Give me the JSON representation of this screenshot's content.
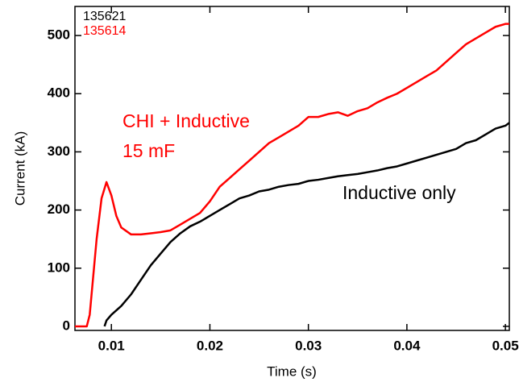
{
  "chart_data": {
    "type": "line",
    "x_label": "Time (s)",
    "y_label": "Current (kA)",
    "xlim": [
      0.0063,
      0.0504
    ],
    "ylim": [
      -7,
      550
    ],
    "xticks": [
      0.01,
      0.02,
      0.03,
      0.04,
      0.05
    ],
    "yticks": [
      0,
      100,
      200,
      300,
      400,
      500
    ],
    "series": [
      {
        "name": "135621",
        "color": "#000000",
        "x": [
          0.0093,
          0.0095,
          0.01,
          0.011,
          0.012,
          0.013,
          0.014,
          0.015,
          0.016,
          0.017,
          0.018,
          0.019,
          0.02,
          0.021,
          0.022,
          0.023,
          0.024,
          0.025,
          0.026,
          0.027,
          0.028,
          0.029,
          0.03,
          0.031,
          0.032,
          0.033,
          0.034,
          0.035,
          0.036,
          0.037,
          0.038,
          0.039,
          0.04,
          0.041,
          0.042,
          0.043,
          0.044,
          0.045,
          0.046,
          0.047,
          0.048,
          0.049,
          0.05,
          0.0504
        ],
        "values": [
          0,
          10,
          20,
          35,
          55,
          80,
          105,
          125,
          145,
          160,
          172,
          180,
          190,
          200,
          210,
          220,
          225,
          232,
          235,
          240,
          243,
          245,
          250,
          252,
          255,
          258,
          260,
          262,
          265,
          268,
          272,
          275,
          280,
          285,
          290,
          295,
          300,
          305,
          315,
          320,
          330,
          340,
          345,
          350
        ]
      },
      {
        "name": "135614",
        "color": "#ff0000",
        "x": [
          0.0063,
          0.0075,
          0.0078,
          0.0085,
          0.009,
          0.0095,
          0.01,
          0.0105,
          0.011,
          0.012,
          0.013,
          0.014,
          0.015,
          0.016,
          0.017,
          0.018,
          0.019,
          0.02,
          0.021,
          0.022,
          0.023,
          0.024,
          0.025,
          0.026,
          0.027,
          0.028,
          0.029,
          0.03,
          0.031,
          0.032,
          0.033,
          0.034,
          0.035,
          0.036,
          0.037,
          0.038,
          0.039,
          0.04,
          0.041,
          0.042,
          0.043,
          0.044,
          0.045,
          0.046,
          0.047,
          0.048,
          0.049,
          0.05,
          0.0504
        ],
        "values": [
          0,
          0,
          20,
          150,
          220,
          248,
          225,
          190,
          170,
          158,
          158,
          160,
          162,
          165,
          175,
          185,
          195,
          215,
          240,
          255,
          270,
          285,
          300,
          315,
          325,
          335,
          345,
          360,
          360,
          365,
          368,
          362,
          370,
          375,
          385,
          393,
          400,
          410,
          420,
          430,
          440,
          455,
          470,
          485,
          495,
          505,
          515,
          520,
          520
        ]
      }
    ],
    "annotations": [
      {
        "text": "CHI + Inductive",
        "color": "#ff0000"
      },
      {
        "text": "15 mF",
        "color": "#ff0000"
      },
      {
        "text": "Inductive only",
        "color": "#000000"
      }
    ]
  }
}
